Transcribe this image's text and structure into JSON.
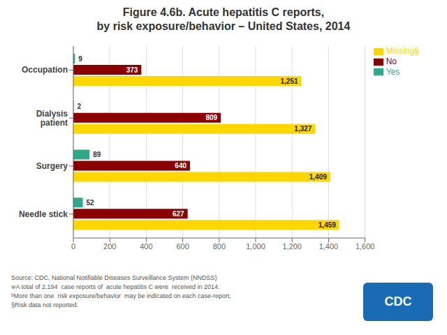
{
  "chart_data": {
    "type": "bar",
    "orientation": "horizontal",
    "title": "Figure 4.6b. Acute hepatitis C reports,\nby risk exposure/behavior – United States, 2014",
    "categories": [
      "Occupation",
      "Dialysis\npatient",
      "Surgery",
      "Needle stick"
    ],
    "series": [
      {
        "name": "Yes",
        "color": "#2EAA8A",
        "values": [
          9,
          2,
          89,
          52
        ]
      },
      {
        "name": "No",
        "color": "#8B0000",
        "values": [
          373,
          809,
          640,
          627
        ]
      },
      {
        "name": "Missing§",
        "color": "#FFD700",
        "values": [
          1251,
          1327,
          1409,
          1459
        ],
        "value_labels": [
          "1,251",
          "1,327",
          "1,409",
          "1,459"
        ]
      }
    ],
    "xlim": [
      0,
      1600
    ],
    "xticks": [
      0,
      200,
      400,
      600,
      800,
      {
        "value": 1000,
        "label": "1,000"
      },
      {
        "value": 1200,
        "label": "1,200"
      },
      {
        "value": 1400,
        "label": "1,400"
      },
      {
        "value": 1600,
        "label": "1,600"
      }
    ],
    "grid": true,
    "legend": "right",
    "data_labels": true,
    "annotations": [
      "Source: CDC, National Notifiable Diseases Surveillance System (NNDSS)",
      "ᴪA total of 2,194  case reports of  acute hepatitis C were  received in 2014.",
      "ᵇMore than one  risk exposure/behavior  may be indicated on each case-report.",
      "§Risk data not reported.",
      "CDC"
    ]
  }
}
